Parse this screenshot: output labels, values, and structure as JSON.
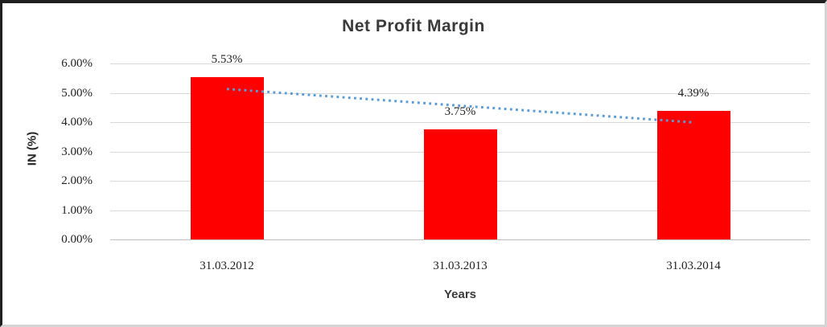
{
  "chart_data": {
    "type": "bar",
    "title": "Net Profit Margin",
    "xlabel": "Years",
    "ylabel": "IN (%)",
    "categories": [
      "31.03.2012",
      "31.03.2013",
      "31.03.2014"
    ],
    "values": [
      5.53,
      3.75,
      4.39
    ],
    "value_labels": [
      "5.53%",
      "3.75%",
      "4.39%"
    ],
    "bar_color": "#ff0000",
    "ylim": [
      0,
      6
    ],
    "y_ticks": [
      {
        "value": 0,
        "label": "0.00%"
      },
      {
        "value": 1,
        "label": "1.00%"
      },
      {
        "value": 2,
        "label": "2.00%"
      },
      {
        "value": 3,
        "label": "3.00%"
      },
      {
        "value": 4,
        "label": "4.00%"
      },
      {
        "value": 5,
        "label": "5.00%"
      },
      {
        "value": 6,
        "label": "6.00%"
      }
    ],
    "grid": true,
    "legend": false,
    "trendline": {
      "style": "dotted",
      "color": "#5b9bd5",
      "start_value": 5.13,
      "end_value": 3.99
    }
  }
}
